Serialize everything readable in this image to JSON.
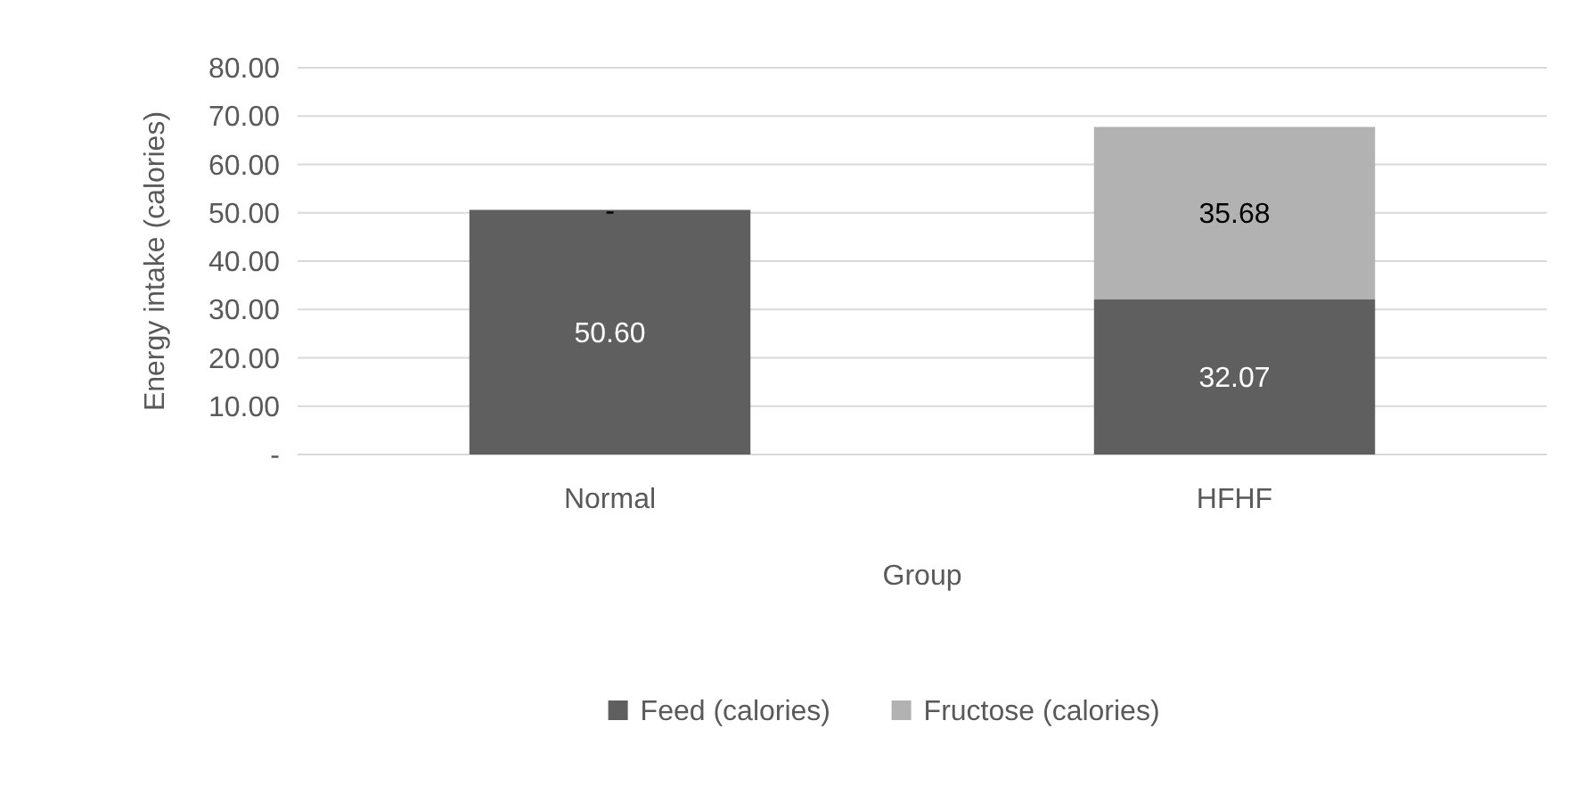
{
  "chart_data": {
    "type": "bar",
    "xlabel": "Group",
    "ylabel": "Energy intake (calories)",
    "categories": [
      "Normal",
      "HFHF"
    ],
    "stacked": true,
    "series": [
      {
        "name": "Feed (calories)",
        "color": "#5f5f5f",
        "values": [
          50.6,
          32.07
        ],
        "value_labels": [
          "50.60",
          "32.07"
        ]
      },
      {
        "name": "Fructose (calories)",
        "color": "#b2b2b2",
        "values": [
          0,
          35.68
        ],
        "value_labels": [
          "-",
          "35.68"
        ]
      }
    ],
    "ylim": [
      0,
      80
    ],
    "yticks": [
      {
        "value": 0,
        "label": "-"
      },
      {
        "value": 10,
        "label": "10.00"
      },
      {
        "value": 20,
        "label": "20.00"
      },
      {
        "value": 30,
        "label": "30.00"
      },
      {
        "value": 40,
        "label": "40.00"
      },
      {
        "value": 50,
        "label": "50.00"
      },
      {
        "value": 60,
        "label": "60.00"
      },
      {
        "value": 70,
        "label": "70.00"
      },
      {
        "value": 80,
        "label": "80.00"
      }
    ],
    "grid": "y",
    "legend": "bottom"
  }
}
